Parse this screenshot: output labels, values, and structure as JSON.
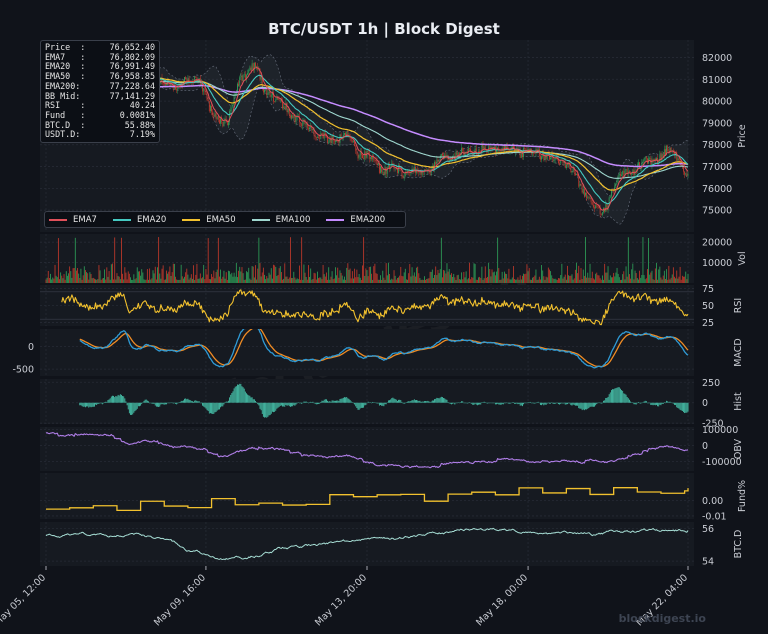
{
  "title": "BTC/USDT  1h  |  Block Digest",
  "watermark": "blockdigest.io",
  "footer": "blockdigest.io",
  "colors": {
    "background": "#10131a",
    "panel": "#161a21",
    "grid": "#262b35",
    "axis_text": "#c9ccd3",
    "up_candle": "#2e9e58",
    "down_candle": "#c0392b",
    "ema7": "#e0505a",
    "ema20": "#45c9c1",
    "ema50": "#f2c12e",
    "ema100": "#9fd7cf",
    "ema200": "#c58cff",
    "rsi": "#f2c12e",
    "macd": "#2f9bd6",
    "signal": "#f08c24",
    "hist": "#48c9b0",
    "obv": "#b07ee8",
    "fund": "#f2c12e",
    "btcd": "#a5dcd3"
  },
  "info_box": [
    {
      "label": "Price  :",
      "value": "76,652.40"
    },
    {
      "label": "EMA7   :",
      "value": "76,802.09"
    },
    {
      "label": "EMA20  :",
      "value": "76,991.49"
    },
    {
      "label": "EMA50  :",
      "value": "76,958.85"
    },
    {
      "label": "EMA200:",
      "value": "77,228.64"
    },
    {
      "label": "BB Mid:",
      "value": "77,141.29"
    },
    {
      "label": "RSI    :",
      "value": "40.24"
    },
    {
      "label": "Fund   :",
      "value": "0.0081%"
    },
    {
      "label": "BTC.D  :",
      "value": "55.88%"
    },
    {
      "label": "USDT.D:",
      "value": "7.19%"
    }
  ],
  "legend": [
    {
      "name": "EMA7",
      "color": "#e0505a"
    },
    {
      "name": "EMA20",
      "color": "#45c9c1"
    },
    {
      "name": "EMA50",
      "color": "#f2c12e"
    },
    {
      "name": "EMA100",
      "color": "#9fd7cf"
    },
    {
      "name": "EMA200",
      "color": "#c58cff"
    }
  ],
  "chart_data": {
    "type": "line",
    "x_ticks": [
      "May 05, 12:00",
      "May 09, 16:00",
      "May 13, 20:00",
      "May 18, 00:00",
      "May 22, 04:00"
    ],
    "price": {
      "ylabel": "Price",
      "ylim": [
        74000,
        82800
      ],
      "ticks": [
        75000,
        76000,
        77000,
        78000,
        79000,
        80000,
        81000,
        82000
      ],
      "close_anchors": [
        [
          0,
          80300
        ],
        [
          25,
          80900
        ],
        [
          48,
          80500
        ],
        [
          60,
          81300
        ],
        [
          68,
          82000
        ],
        [
          75,
          80900
        ],
        [
          90,
          81200
        ],
        [
          110,
          80700
        ],
        [
          135,
          81000
        ],
        [
          150,
          79200
        ],
        [
          160,
          79100
        ],
        [
          175,
          81200
        ],
        [
          185,
          81600
        ],
        [
          195,
          80500
        ],
        [
          210,
          79800
        ],
        [
          230,
          78900
        ],
        [
          250,
          78200
        ],
        [
          265,
          78400
        ],
        [
          280,
          77600
        ],
        [
          300,
          76900
        ],
        [
          330,
          76700
        ],
        [
          360,
          77500
        ],
        [
          390,
          77800
        ],
        [
          430,
          77700
        ],
        [
          460,
          77200
        ],
        [
          480,
          75800
        ],
        [
          492,
          74800
        ],
        [
          510,
          76600
        ],
        [
          535,
          77200
        ],
        [
          555,
          77700
        ],
        [
          570,
          76650
        ]
      ],
      "ema7_last": 76802.09,
      "ema20_last": 76991.49,
      "ema50_last": 76958.85,
      "ema200_last": 77228.64,
      "bb_mid_last": 77141.29
    },
    "volume": {
      "ylabel": "Vol",
      "ylim": [
        0,
        24000
      ],
      "ticks": [
        10000,
        20000
      ]
    },
    "rsi": {
      "ylabel": "RSI",
      "ylim": [
        20,
        80
      ],
      "ticks": [
        25,
        50,
        75
      ],
      "last": 40.24
    },
    "macd": {
      "ylabel": "MACD",
      "ylim": [
        -650,
        380
      ],
      "ticks": [
        0,
        -500
      ]
    },
    "hist": {
      "ylabel": "Hist",
      "ylim": [
        -260,
        290
      ],
      "ticks": [
        250,
        0,
        -250
      ]
    },
    "obv": {
      "ylabel": "OBV",
      "ylim": [
        -160000,
        115000
      ],
      "ticks": [
        100000,
        0,
        -100000
      ]
    },
    "funding": {
      "ylabel": "Fund%",
      "ylim": [
        -0.012,
        0.018
      ],
      "ticks": [
        0.0,
        -0.01
      ],
      "last": 0.0081
    },
    "btc_dominance": {
      "ylabel": "BTC.D",
      "ylim": [
        53.7,
        56.4
      ],
      "ticks": [
        56,
        54
      ],
      "last": 55.88
    }
  }
}
